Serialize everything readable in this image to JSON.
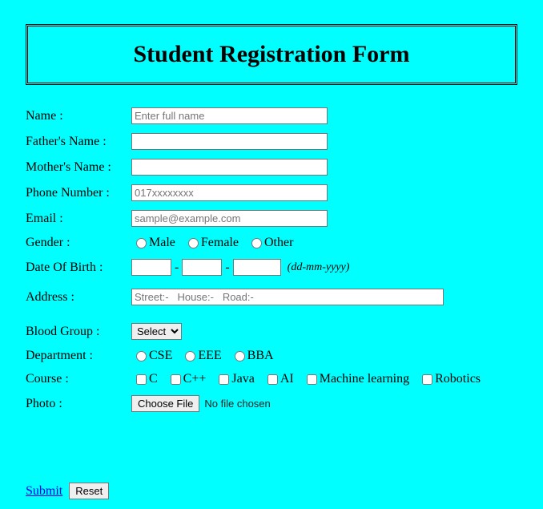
{
  "colors": {
    "background": "#00ffff",
    "border": "#000000",
    "input_border": "#767676",
    "input_bg": "#ffffff",
    "button_bg": "#efefef",
    "link": "#0000ee"
  },
  "title": "Student Registration Form",
  "labels": {
    "name": "Name :",
    "father": "Father's Name :",
    "mother": "Mother's Name :",
    "phone": "Phone Number :",
    "email": "Email :",
    "gender": "Gender :",
    "dob": "Date Of Birth :",
    "address": "Address :",
    "blood": "Blood Group :",
    "department": "Department :",
    "course": "Course :",
    "photo": "Photo :"
  },
  "placeholders": {
    "name": "Enter full name",
    "phone": "017xxxxxxxx",
    "email": "sample@example.com",
    "address": "Street:-   House:-   Road:-"
  },
  "gender": {
    "male": "Male",
    "female": "Female",
    "other": "Other"
  },
  "dob": {
    "sep": "-",
    "hint": "(dd-mm-yyyy)"
  },
  "blood": {
    "selected": "Select"
  },
  "department": {
    "cse": "CSE",
    "eee": "EEE",
    "bba": "BBA"
  },
  "course": {
    "c": "C",
    "cpp": "C++",
    "java": "Java",
    "ai": "AI",
    "ml": "Machine learning",
    "robotics": "Robotics"
  },
  "file": {
    "button": "Choose File",
    "status": "No file chosen"
  },
  "actions": {
    "submit": "Submit",
    "reset": "Reset"
  }
}
